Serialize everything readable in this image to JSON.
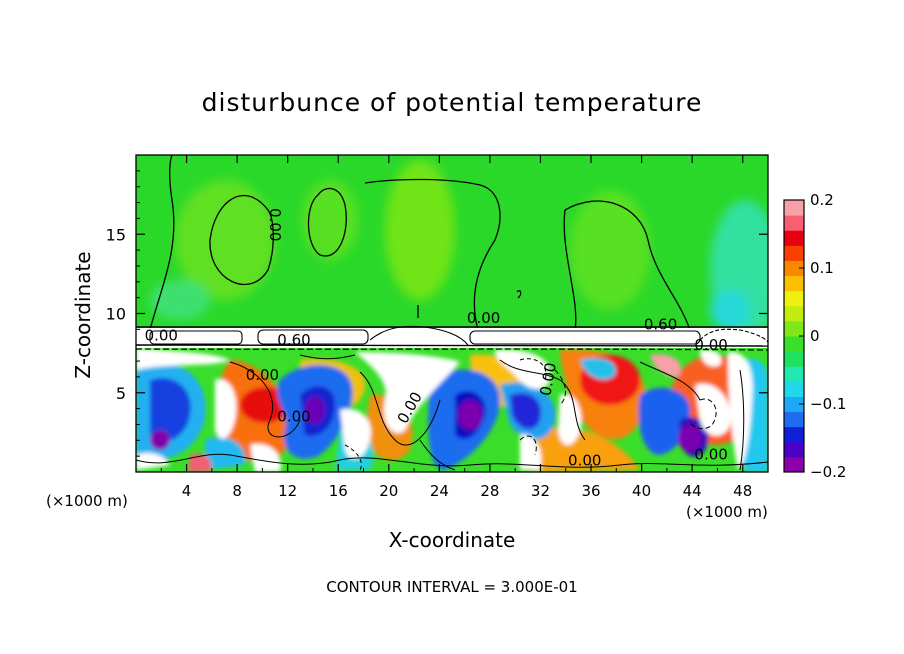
{
  "chart_data": {
    "type": "heatmap",
    "title": "disturbunce of potential temperature",
    "xlabel": "X-coordinate",
    "ylabel": "Z-coordinate",
    "x_unit_left": "(×1000 m)",
    "x_unit_right": "(×1000 m)",
    "xlim": [
      0,
      50
    ],
    "ylim": [
      0,
      20
    ],
    "x_ticks": [
      4,
      8,
      12,
      16,
      20,
      24,
      28,
      32,
      36,
      40,
      44,
      48
    ],
    "y_ticks": [
      5,
      10,
      15
    ],
    "colorbar": {
      "min": -0.2,
      "max": 0.2,
      "ticks": [
        {
          "value": 0.2,
          "label": "0.2"
        },
        {
          "value": 0.1,
          "label": "0.1"
        },
        {
          "value": 0,
          "label": "0"
        },
        {
          "value": -0.1,
          "label": "−0.1"
        },
        {
          "value": -0.2,
          "label": "−0.2"
        }
      ],
      "colors": [
        "#8b00a8",
        "#4b00c8",
        "#1020d8",
        "#1e6cf0",
        "#20a8f8",
        "#20d8e8",
        "#20e8b0",
        "#20e060",
        "#38e028",
        "#80e818",
        "#c0ec10",
        "#f0f010",
        "#f8c000",
        "#f88800",
        "#f84000",
        "#e80010",
        "#f86070",
        "#f8a0a8"
      ]
    },
    "contour_interval": "CONTOUR INTERVAL = 3.000E-01",
    "contour_labels": [
      {
        "text": "0.00",
        "x": 10.6,
        "z": 15.6,
        "rotate": 90
      },
      {
        "text": "0.00",
        "x": 27.5,
        "z": 9.4
      },
      {
        "text": "0.60",
        "x": 41.5,
        "z": 9.0
      },
      {
        "text": "0.00",
        "x": 2.0,
        "z": 8.3
      },
      {
        "text": "0.60",
        "x": 12.5,
        "z": 8.0
      },
      {
        "text": "0.00",
        "x": 45.5,
        "z": 7.7
      },
      {
        "text": "0.00",
        "x": 10.0,
        "z": 5.8
      },
      {
        "text": "0.00",
        "x": 12.5,
        "z": 3.2
      },
      {
        "text": "0.00",
        "x": 22.0,
        "z": 3.9,
        "rotate": -60
      },
      {
        "text": "0.00",
        "x": 33.0,
        "z": 5.8,
        "rotate": -80
      },
      {
        "text": "0.00",
        "x": 35.5,
        "z": 0.4
      },
      {
        "text": "0.00",
        "x": 45.5,
        "z": 0.8
      }
    ]
  }
}
